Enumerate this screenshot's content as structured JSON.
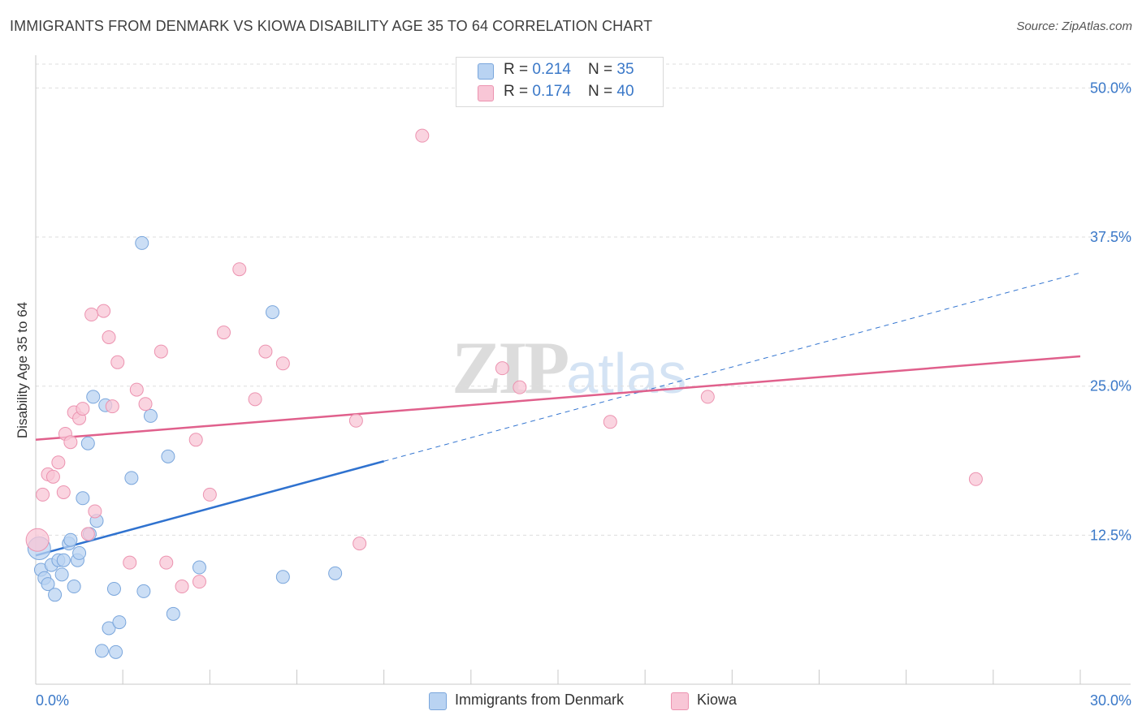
{
  "header": {
    "title": "IMMIGRANTS FROM DENMARK VS KIOWA DISABILITY AGE 35 TO 64 CORRELATION CHART",
    "source": "Source: ZipAtlas.com"
  },
  "watermark": {
    "zip": "ZIP",
    "atlas": "atlas"
  },
  "legend_top": {
    "rows": [
      {
        "r_label": "R = ",
        "r_value": "0.214",
        "n_label": "N = ",
        "n_value": "35"
      },
      {
        "r_label": "R = ",
        "r_value": "0.174",
        "n_label": "N = ",
        "n_value": "40"
      }
    ]
  },
  "legend_bottom": {
    "items": [
      {
        "label": "Immigrants from Denmark"
      },
      {
        "label": "Kiowa"
      }
    ]
  },
  "colors": {
    "blue_fill": "#b9d3f2",
    "blue_stroke": "#7aa6dc",
    "blue_line": "#2f72cf",
    "pink_fill": "#f8c6d6",
    "pink_stroke": "#ec93b0",
    "pink_line": "#e0608c",
    "grid": "#dddddd",
    "tick_label": "#3a78c8"
  },
  "chart_data": {
    "type": "scatter",
    "title": "IMMIGRANTS FROM DENMARK VS KIOWA DISABILITY AGE 35 TO 64 CORRELATION CHART",
    "xlabel": "",
    "ylabel": "Disability Age 35 to 64",
    "xlim": [
      0,
      30
    ],
    "ylim": [
      0,
      52
    ],
    "x_tick_labels": [
      "0.0%",
      "30.0%"
    ],
    "y_ticks": [
      12.5,
      25.0,
      37.5,
      50.0
    ],
    "y_tick_labels": [
      "12.5%",
      "25.0%",
      "37.5%",
      "50.0%"
    ],
    "grid": true,
    "legend_position": "top-center",
    "series": [
      {
        "name": "Immigrants from Denmark",
        "r": 0.214,
        "n": 35,
        "points": [
          {
            "x": 0.1,
            "y": 11.4,
            "big": true
          },
          {
            "x": 0.15,
            "y": 9.6
          },
          {
            "x": 0.25,
            "y": 8.9
          },
          {
            "x": 0.35,
            "y": 8.4
          },
          {
            "x": 0.45,
            "y": 10.0
          },
          {
            "x": 0.55,
            "y": 7.5
          },
          {
            "x": 0.65,
            "y": 10.4
          },
          {
            "x": 0.75,
            "y": 9.2
          },
          {
            "x": 0.8,
            "y": 10.4
          },
          {
            "x": 0.95,
            "y": 11.8
          },
          {
            "x": 1.0,
            "y": 12.1
          },
          {
            "x": 1.1,
            "y": 8.2
          },
          {
            "x": 1.2,
            "y": 10.4
          },
          {
            "x": 1.25,
            "y": 11.0
          },
          {
            "x": 1.35,
            "y": 15.6
          },
          {
            "x": 1.5,
            "y": 20.2
          },
          {
            "x": 1.55,
            "y": 12.6
          },
          {
            "x": 1.65,
            "y": 24.1
          },
          {
            "x": 1.75,
            "y": 13.7
          },
          {
            "x": 2.0,
            "y": 23.4
          },
          {
            "x": 2.1,
            "y": 4.7
          },
          {
            "x": 2.25,
            "y": 8.0
          },
          {
            "x": 2.3,
            "y": 2.7
          },
          {
            "x": 2.4,
            "y": 5.2
          },
          {
            "x": 1.9,
            "y": 2.8
          },
          {
            "x": 2.75,
            "y": 17.3
          },
          {
            "x": 3.05,
            "y": 37.0
          },
          {
            "x": 3.1,
            "y": 7.8
          },
          {
            "x": 3.3,
            "y": 22.5
          },
          {
            "x": 3.8,
            "y": 19.1
          },
          {
            "x": 3.95,
            "y": 5.9
          },
          {
            "x": 4.7,
            "y": 9.8
          },
          {
            "x": 6.8,
            "y": 31.2
          },
          {
            "x": 7.1,
            "y": 9.0
          },
          {
            "x": 8.6,
            "y": 9.3
          }
        ],
        "trend": {
          "x0": 0,
          "y0": 10.8,
          "x1": 10,
          "y1": 18.7,
          "dash_to_x": 30,
          "dash_to_y": 34.5
        }
      },
      {
        "name": "Kiowa",
        "r": 0.174,
        "n": 40,
        "points": [
          {
            "x": 0.05,
            "y": 12.1,
            "big": true
          },
          {
            "x": 0.2,
            "y": 15.9
          },
          {
            "x": 0.35,
            "y": 17.6
          },
          {
            "x": 0.5,
            "y": 17.4
          },
          {
            "x": 0.65,
            "y": 18.6
          },
          {
            "x": 0.8,
            "y": 16.1
          },
          {
            "x": 0.85,
            "y": 21.0
          },
          {
            "x": 1.0,
            "y": 20.3
          },
          {
            "x": 1.1,
            "y": 22.8
          },
          {
            "x": 1.25,
            "y": 22.3
          },
          {
            "x": 1.35,
            "y": 23.1
          },
          {
            "x": 1.5,
            "y": 12.6
          },
          {
            "x": 1.6,
            "y": 31.0
          },
          {
            "x": 1.7,
            "y": 14.5
          },
          {
            "x": 1.95,
            "y": 31.3
          },
          {
            "x": 2.1,
            "y": 29.1
          },
          {
            "x": 2.2,
            "y": 23.3
          },
          {
            "x": 2.35,
            "y": 27.0
          },
          {
            "x": 2.7,
            "y": 10.2
          },
          {
            "x": 2.9,
            "y": 24.7
          },
          {
            "x": 3.15,
            "y": 23.5
          },
          {
            "x": 3.6,
            "y": 27.9
          },
          {
            "x": 3.75,
            "y": 10.2
          },
          {
            "x": 4.2,
            "y": 8.2
          },
          {
            "x": 4.6,
            "y": 20.5
          },
          {
            "x": 4.7,
            "y": 8.6
          },
          {
            "x": 5.0,
            "y": 15.9
          },
          {
            "x": 5.4,
            "y": 29.5
          },
          {
            "x": 5.85,
            "y": 34.8
          },
          {
            "x": 6.3,
            "y": 23.9
          },
          {
            "x": 6.6,
            "y": 27.9
          },
          {
            "x": 7.1,
            "y": 26.9
          },
          {
            "x": 9.2,
            "y": 22.1
          },
          {
            "x": 9.3,
            "y": 11.8
          },
          {
            "x": 11.1,
            "y": 46.0
          },
          {
            "x": 13.4,
            "y": 26.5
          },
          {
            "x": 13.9,
            "y": 24.9
          },
          {
            "x": 16.5,
            "y": 22.0
          },
          {
            "x": 19.3,
            "y": 24.1
          },
          {
            "x": 27.0,
            "y": 17.2
          }
        ],
        "trend": {
          "x0": 0,
          "y0": 20.5,
          "x1": 30,
          "y1": 27.5
        }
      }
    ]
  }
}
